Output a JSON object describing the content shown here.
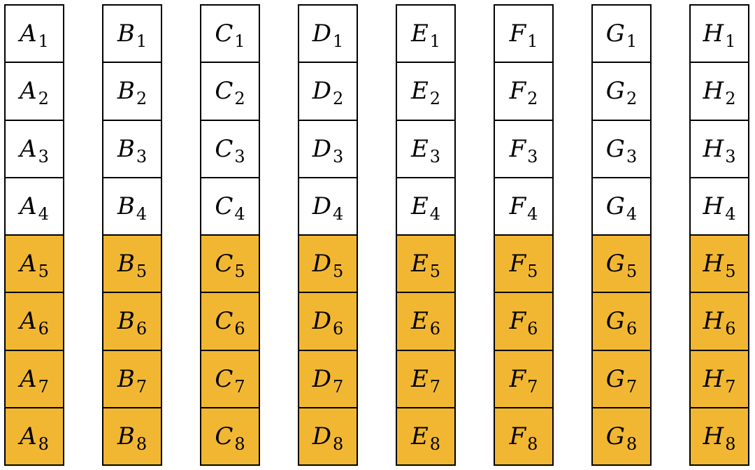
{
  "highlight_color": "#f2b732",
  "cell_color": "#ffffff",
  "columns": [
    {
      "letter": "A",
      "cells": [
        {
          "letter": "A",
          "sub": "1",
          "highlighted": false
        },
        {
          "letter": "A",
          "sub": "2",
          "highlighted": false
        },
        {
          "letter": "A",
          "sub": "3",
          "highlighted": false
        },
        {
          "letter": "A",
          "sub": "4",
          "highlighted": false
        },
        {
          "letter": "A",
          "sub": "5",
          "highlighted": true
        },
        {
          "letter": "A",
          "sub": "6",
          "highlighted": true
        },
        {
          "letter": "A",
          "sub": "7",
          "highlighted": true
        },
        {
          "letter": "A",
          "sub": "8",
          "highlighted": true
        }
      ]
    },
    {
      "letter": "B",
      "cells": [
        {
          "letter": "B",
          "sub": "1",
          "highlighted": false
        },
        {
          "letter": "B",
          "sub": "2",
          "highlighted": false
        },
        {
          "letter": "B",
          "sub": "3",
          "highlighted": false
        },
        {
          "letter": "B",
          "sub": "4",
          "highlighted": false
        },
        {
          "letter": "B",
          "sub": "5",
          "highlighted": true
        },
        {
          "letter": "B",
          "sub": "6",
          "highlighted": true
        },
        {
          "letter": "B",
          "sub": "7",
          "highlighted": true
        },
        {
          "letter": "B",
          "sub": "8",
          "highlighted": true
        }
      ]
    },
    {
      "letter": "C",
      "cells": [
        {
          "letter": "C",
          "sub": "1",
          "highlighted": false
        },
        {
          "letter": "C",
          "sub": "2",
          "highlighted": false
        },
        {
          "letter": "C",
          "sub": "3",
          "highlighted": false
        },
        {
          "letter": "C",
          "sub": "4",
          "highlighted": false
        },
        {
          "letter": "C",
          "sub": "5",
          "highlighted": true
        },
        {
          "letter": "C",
          "sub": "6",
          "highlighted": true
        },
        {
          "letter": "C",
          "sub": "7",
          "highlighted": true
        },
        {
          "letter": "C",
          "sub": "8",
          "highlighted": true
        }
      ]
    },
    {
      "letter": "D",
      "cells": [
        {
          "letter": "D",
          "sub": "1",
          "highlighted": false
        },
        {
          "letter": "D",
          "sub": "2",
          "highlighted": false
        },
        {
          "letter": "D",
          "sub": "3",
          "highlighted": false
        },
        {
          "letter": "D",
          "sub": "4",
          "highlighted": false
        },
        {
          "letter": "D",
          "sub": "5",
          "highlighted": true
        },
        {
          "letter": "D",
          "sub": "6",
          "highlighted": true
        },
        {
          "letter": "D",
          "sub": "7",
          "highlighted": true
        },
        {
          "letter": "D",
          "sub": "8",
          "highlighted": true
        }
      ]
    },
    {
      "letter": "E",
      "cells": [
        {
          "letter": "E",
          "sub": "1",
          "highlighted": false
        },
        {
          "letter": "E",
          "sub": "2",
          "highlighted": false
        },
        {
          "letter": "E",
          "sub": "3",
          "highlighted": false
        },
        {
          "letter": "E",
          "sub": "4",
          "highlighted": false
        },
        {
          "letter": "E",
          "sub": "5",
          "highlighted": true
        },
        {
          "letter": "E",
          "sub": "6",
          "highlighted": true
        },
        {
          "letter": "E",
          "sub": "7",
          "highlighted": true
        },
        {
          "letter": "E",
          "sub": "8",
          "highlighted": true
        }
      ]
    },
    {
      "letter": "F",
      "cells": [
        {
          "letter": "F",
          "sub": "1",
          "highlighted": false
        },
        {
          "letter": "F",
          "sub": "2",
          "highlighted": false
        },
        {
          "letter": "F",
          "sub": "3",
          "highlighted": false
        },
        {
          "letter": "F",
          "sub": "4",
          "highlighted": false
        },
        {
          "letter": "F",
          "sub": "5",
          "highlighted": true
        },
        {
          "letter": "F",
          "sub": "6",
          "highlighted": true
        },
        {
          "letter": "F",
          "sub": "7",
          "highlighted": true
        },
        {
          "letter": "F",
          "sub": "8",
          "highlighted": true
        }
      ]
    },
    {
      "letter": "G",
      "cells": [
        {
          "letter": "G",
          "sub": "1",
          "highlighted": false
        },
        {
          "letter": "G",
          "sub": "2",
          "highlighted": false
        },
        {
          "letter": "G",
          "sub": "3",
          "highlighted": false
        },
        {
          "letter": "G",
          "sub": "4",
          "highlighted": false
        },
        {
          "letter": "G",
          "sub": "5",
          "highlighted": true
        },
        {
          "letter": "G",
          "sub": "6",
          "highlighted": true
        },
        {
          "letter": "G",
          "sub": "7",
          "highlighted": true
        },
        {
          "letter": "G",
          "sub": "8",
          "highlighted": true
        }
      ]
    },
    {
      "letter": "H",
      "cells": [
        {
          "letter": "H",
          "sub": "1",
          "highlighted": false
        },
        {
          "letter": "H",
          "sub": "2",
          "highlighted": false
        },
        {
          "letter": "H",
          "sub": "3",
          "highlighted": false
        },
        {
          "letter": "H",
          "sub": "4",
          "highlighted": false
        },
        {
          "letter": "H",
          "sub": "5",
          "highlighted": true
        },
        {
          "letter": "H",
          "sub": "6",
          "highlighted": true
        },
        {
          "letter": "H",
          "sub": "7",
          "highlighted": true
        },
        {
          "letter": "H",
          "sub": "8",
          "highlighted": true
        }
      ]
    }
  ]
}
